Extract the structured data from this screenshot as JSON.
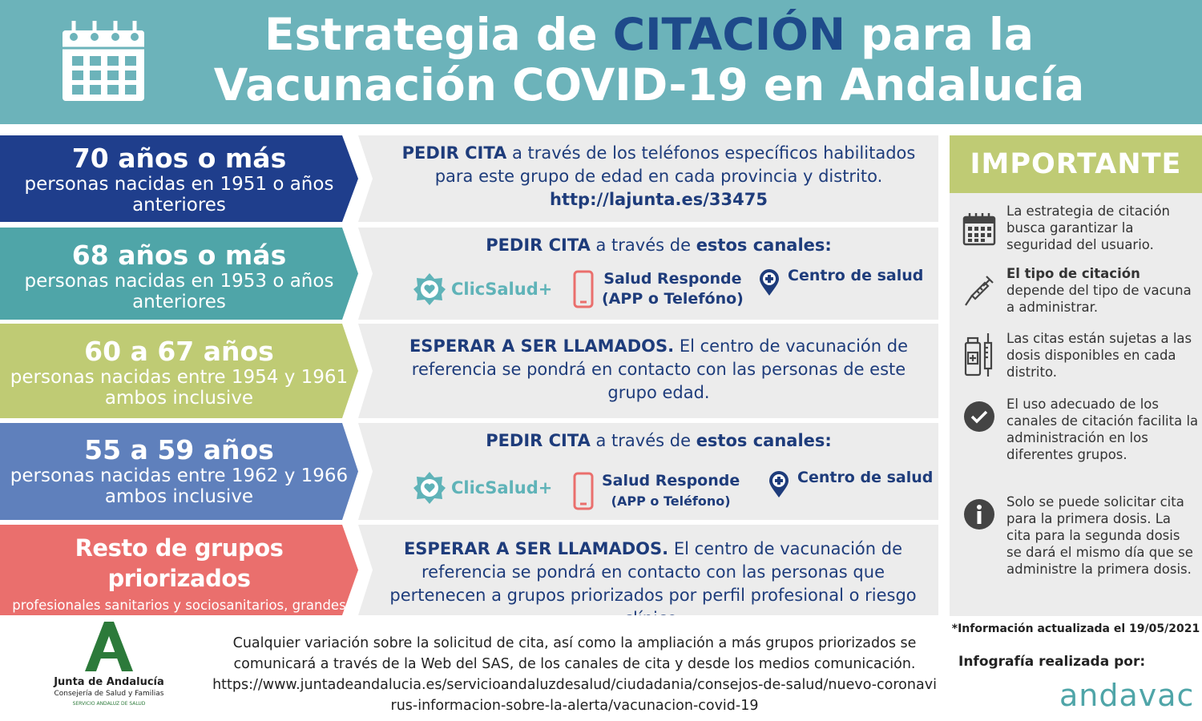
{
  "header": {
    "title_part1": "Estrategia de ",
    "title_highlight": "CITACIÓN",
    "title_part2": " para la",
    "title_line2": "Vacunación COVID-19 en Andalucía",
    "icon": "calendar-icon"
  },
  "groups": [
    {
      "age": "70 años o más",
      "desc": "personas nacidas en 1951 o años anteriores",
      "color": "#1f3e8c"
    },
    {
      "age": "68 años o más",
      "desc": "personas nacidas en 1953 o años anteriores",
      "color": "#4fa5a8"
    },
    {
      "age": "60 a 67 años",
      "desc": "personas nacidas entre 1954 y 1961 ambos inclusive",
      "color": "#bfcb74"
    },
    {
      "age": "55 a 59 años",
      "desc": "personas nacidas entre 1962 y 1966 ambos inclusive",
      "color": "#5f80bc"
    },
    {
      "age": "Resto de grupos priorizados",
      "desc": "profesionales sanitarios y sociosanitarios, grandes dependientes, muy alto riesgo y personal esencial",
      "color": "#ea6f6d"
    }
  ],
  "instructions": {
    "i1": {
      "bold": "PEDIR CITA",
      "text": " a través de los teléfonos específicos habilitados para este grupo de edad en cada provincia y distrito.",
      "link": "http://lajunta.es/33475"
    },
    "i2": {
      "bold1": "PEDIR CITA",
      "mid": " a través de ",
      "bold2": "estos canales:"
    },
    "i3": {
      "bold": "ESPERAR A SER LLAMADOS.",
      "text": " El centro de vacunación de referencia se pondrá en contacto con las personas de este grupo edad."
    },
    "i4": {
      "bold1": "PEDIR CITA",
      "mid": " a través de ",
      "bold2": "estos canales:"
    },
    "i5": {
      "bold": "ESPERAR A SER LLAMADOS.",
      "text": " El centro de vacunación de referencia se pondrá en contacto con las personas que pertenecen a grupos priorizados por perfil profesional o riesgo clínico."
    }
  },
  "channels": {
    "clicsalud": "ClicSalud+",
    "salud_responde": "Salud Responde",
    "salud_responde_sub_a": "(APP o Telefóno)",
    "salud_responde_sub_b": "(APP o Teléfono)",
    "centro": "Centro de salud"
  },
  "important": {
    "title": "IMPORTANTE",
    "items": [
      {
        "icon": "calendar-icon",
        "bold": "",
        "text": "La estrategia de citación busca garantizar la seguridad del usuario."
      },
      {
        "icon": "syringe-icon",
        "bold": "El tipo de citación",
        "text": " depende del tipo de vacuna a administrar."
      },
      {
        "icon": "vial-syringe-icon",
        "bold": "",
        "text": "Las citas están sujetas a las dosis disponibles en cada distrito."
      },
      {
        "icon": "check-circle-icon",
        "bold": "",
        "text": "El uso adecuado de los canales de citación facilita la administración en los diferentes grupos."
      },
      {
        "icon": "info-circle-icon",
        "bold": "",
        "text": "Solo se puede solicitar cita para la primera dosis. La cita para la segunda dosis se dará el mismo día que se administre la primera dosis."
      }
    ]
  },
  "footer": {
    "note": "Cualquier variación sobre la solicitud de cita, así como la ampliación a más grupos priorizados se comunicará a través de la Web del SAS, de los canales de cita y desde los medios comunicación.",
    "url": "https://www.juntadeandalucia.es/servicioandaluzdesalud/ciudadania/consejos-de-salud/nuevo-coronavirus-informacion-sobre-la-alerta/vacunacion-covid-19",
    "updated": "*Información actualizada el 19/05/2021",
    "made_by": "Infografía realizada por:",
    "andavac": "andavac",
    "junta_name": "Junta de Andalucía",
    "junta_sub": "Consejería de Salud y Familias",
    "junta_sas": "SERVICIO ANDALUZ DE SALUD"
  }
}
